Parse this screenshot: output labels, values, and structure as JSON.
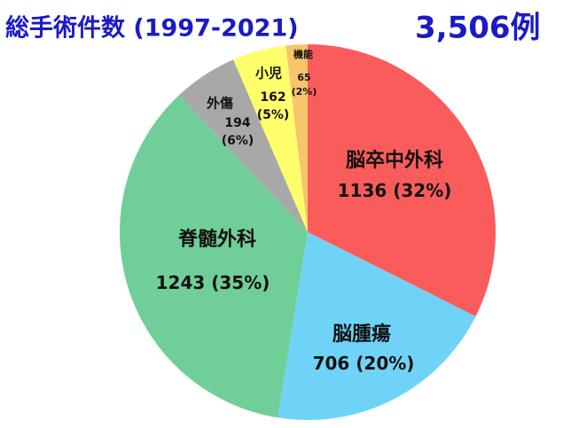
{
  "chart_data": {
    "type": "pie",
    "title": "総手術件数 (1997-2021)",
    "total_label": "3,506例",
    "categories": [
      "脳卒中外科",
      "脳腫瘍",
      "脊髄外科",
      "外傷",
      "小児",
      "機能"
    ],
    "values": [
      1136,
      706,
      1243,
      194,
      162,
      65
    ],
    "value_labels": [
      "1136 (32%)",
      "706 (20%)",
      "1243 (35%)",
      "194\n(6%)",
      "162\n(5%)",
      "65\n(2%)"
    ],
    "colors": [
      "#fa5c5c",
      "#6fd3f7",
      "#70cf98",
      "#a8a8a8",
      "#ffff6b",
      "#f8c46c"
    ]
  }
}
